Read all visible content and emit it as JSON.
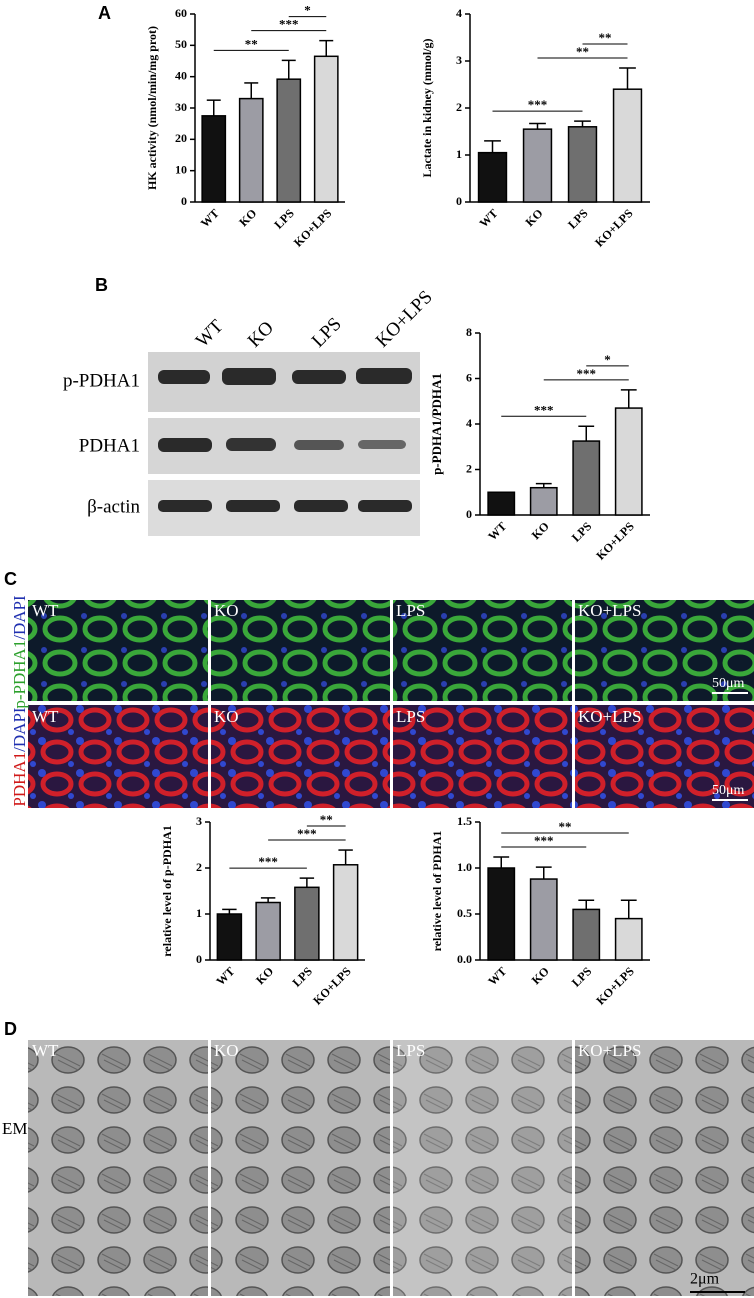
{
  "panel_labels": [
    "A",
    "B",
    "C",
    "D"
  ],
  "chart_data": [
    {
      "type": "bar",
      "ylabel": "HK activity (nmol/min/mg prot)",
      "categories": [
        "WT",
        "KO",
        "LPS",
        "KO+LPS"
      ],
      "values": [
        27.5,
        33,
        39.2,
        46.5
      ],
      "errors": [
        5,
        5,
        6,
        5
      ],
      "colors": [
        "#111111",
        "#9c9ca4",
        "#6f6f6f",
        "#d9d9d9"
      ],
      "ylim": [
        0,
        60
      ],
      "yticks": [
        0,
        10,
        20,
        30,
        40,
        50,
        60
      ],
      "annotations": [
        {
          "text": "**",
          "between": [
            "WT",
            "LPS"
          ]
        },
        {
          "text": "***",
          "between": [
            "KO",
            "KO+LPS"
          ]
        },
        {
          "text": "*",
          "between": [
            "LPS",
            "KO+LPS"
          ]
        }
      ]
    },
    {
      "type": "bar",
      "ylabel": "Lactate in kidney (mmol/g)",
      "categories": [
        "WT",
        "KO",
        "LPS",
        "KO+LPS"
      ],
      "values": [
        1.05,
        1.55,
        1.6,
        2.4
      ],
      "errors": [
        0.25,
        0.12,
        0.12,
        0.45
      ],
      "colors": [
        "#111111",
        "#9c9ca4",
        "#6f6f6f",
        "#d9d9d9"
      ],
      "ylim": [
        0,
        4
      ],
      "yticks": [
        0,
        1,
        2,
        3,
        4
      ],
      "annotations": [
        {
          "text": "***",
          "between": [
            "WT",
            "LPS"
          ]
        },
        {
          "text": "**",
          "between": [
            "KO",
            "KO+LPS"
          ]
        },
        {
          "text": "**",
          "between": [
            "LPS",
            "KO+LPS"
          ]
        }
      ]
    },
    {
      "type": "bar",
      "ylabel": "p-PDHA1/PDHA1",
      "categories": [
        "WT",
        "KO",
        "LPS",
        "KO+LPS"
      ],
      "values": [
        1,
        1.2,
        3.25,
        4.7
      ],
      "errors": [
        0,
        0.18,
        0.65,
        0.8
      ],
      "colors": [
        "#111111",
        "#9c9ca4",
        "#6f6f6f",
        "#d9d9d9"
      ],
      "ylim": [
        0,
        8
      ],
      "yticks": [
        0,
        2,
        4,
        6,
        8
      ],
      "annotations": [
        {
          "text": "***",
          "between": [
            "WT",
            "LPS"
          ]
        },
        {
          "text": "***",
          "between": [
            "KO",
            "KO+LPS"
          ]
        },
        {
          "text": "*",
          "between": [
            "LPS",
            "KO+LPS"
          ]
        }
      ]
    },
    {
      "type": "bar",
      "ylabel": "relative level of p-PDHA1",
      "categories": [
        "WT",
        "KO",
        "LPS",
        "KO+LPS"
      ],
      "values": [
        1,
        1.25,
        1.58,
        2.07
      ],
      "errors": [
        0.1,
        0.1,
        0.2,
        0.32
      ],
      "colors": [
        "#111111",
        "#9c9ca4",
        "#6f6f6f",
        "#d9d9d9"
      ],
      "ylim": [
        0,
        3
      ],
      "yticks": [
        0,
        1,
        2,
        3
      ],
      "annotations": [
        {
          "text": "***",
          "between": [
            "WT",
            "LPS"
          ]
        },
        {
          "text": "***",
          "between": [
            "KO",
            "KO+LPS"
          ]
        },
        {
          "text": "**",
          "between": [
            "LPS",
            "KO+LPS"
          ]
        }
      ]
    },
    {
      "type": "bar",
      "ylabel": "relative level of PDHA1",
      "categories": [
        "WT",
        "KO",
        "LPS",
        "KO+LPS"
      ],
      "values": [
        1,
        0.88,
        0.55,
        0.45
      ],
      "errors": [
        0.12,
        0.13,
        0.1,
        0.2
      ],
      "colors": [
        "#111111",
        "#9c9ca4",
        "#6f6f6f",
        "#d9d9d9"
      ],
      "ylim": [
        0,
        1.5
      ],
      "yticks": [
        {
          "value": 0,
          "label": "0.0"
        },
        {
          "value": 0.5,
          "label": "0.5"
        },
        {
          "value": 1,
          "label": "1.0"
        },
        {
          "value": 1.5,
          "label": "1.5"
        }
      ],
      "annotations": [
        {
          "text": "***",
          "between": [
            "WT",
            "LPS"
          ]
        },
        {
          "text": "**",
          "between": [
            "WT",
            "KO+LPS"
          ]
        }
      ]
    }
  ],
  "blot": {
    "lanes": [
      "WT",
      "KO",
      "LPS",
      "KO+LPS"
    ],
    "rows": [
      "p-PDHA1",
      "PDHA1",
      "β-actin"
    ]
  },
  "if": {
    "panels": [
      "WT",
      "KO",
      "LPS",
      "KO+LPS"
    ],
    "rows": [
      {
        "marker": "p-PDHA1",
        "stain": "/DAPI"
      },
      {
        "marker": "PDHA1",
        "stain": "/DAPI"
      }
    ],
    "scale": "50μm"
  },
  "em": {
    "panels": [
      "WT",
      "KO",
      "LPS",
      "KO+LPS"
    ],
    "row": "EM",
    "scale": "2μm"
  }
}
